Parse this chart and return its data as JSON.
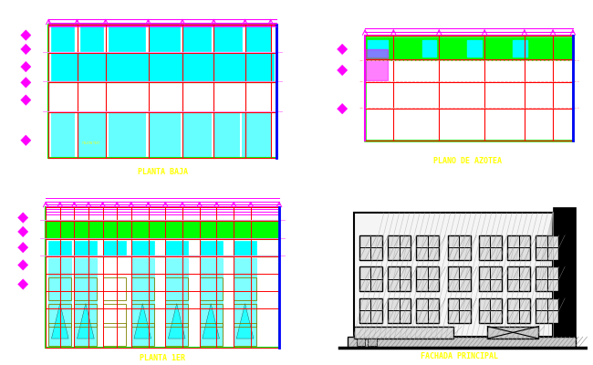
{
  "background_color": "#ffffff",
  "panel_border_color": "#00ff00",
  "panels": [
    {
      "label": "PLANTA BAJA",
      "label_color": "#ffff00"
    },
    {
      "label": "PLANO DE AZOTEA",
      "label_color": "#ffff00"
    },
    {
      "label": "PLANTA 1ER",
      "label_color": "#ffff00"
    },
    {
      "label": "FACHADA PRINCIPAL",
      "label_color": "#ffff00"
    }
  ],
  "colors": {
    "magenta": "#ff00ff",
    "cyan": "#00ffff",
    "red": "#ff0000",
    "green": "#00ff00",
    "yellow": "#ffff00",
    "blue": "#0000ff",
    "black": "#000000",
    "white": "#ffffff",
    "pink": "#ff88ff",
    "olive": "#808000",
    "dark_red": "#cc0000",
    "light_pink": "#ffaaaa"
  }
}
